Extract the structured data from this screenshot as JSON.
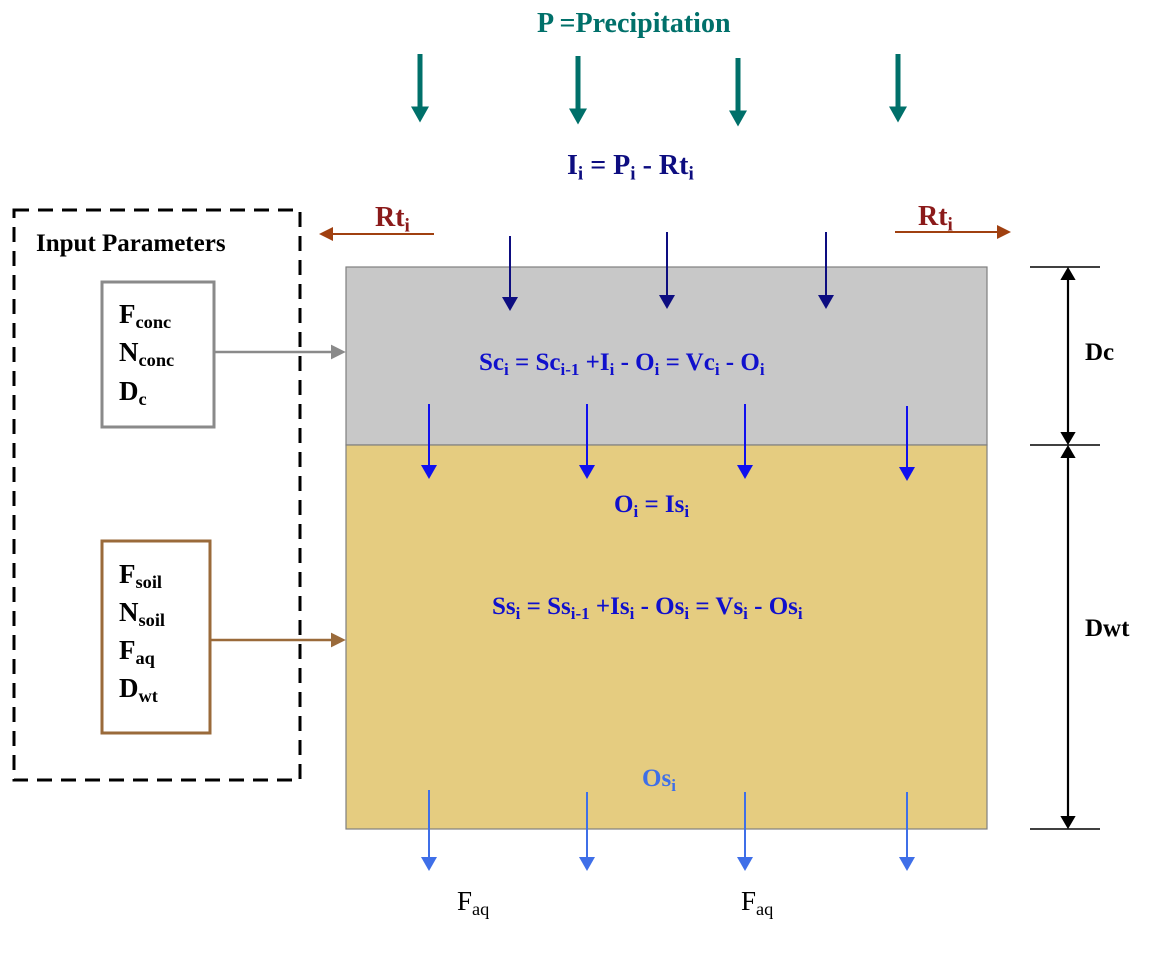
{
  "title": "P =Precipitation",
  "infiltration": {
    "I": "I",
    "i1": "i",
    "eq": " = P",
    "i2": "i",
    "minus": " - Rt",
    "i3": "i"
  },
  "runoff_left": {
    "base": "Rt",
    "sub": "i"
  },
  "runoff_right": {
    "base": "Rt",
    "sub": "i"
  },
  "input_panel": {
    "title": "Input Parameters",
    "concrete_params": [
      {
        "base": "F",
        "sub": "conc"
      },
      {
        "base": "N",
        "sub": "conc"
      },
      {
        "base": "D",
        "sub": "c"
      }
    ],
    "soil_params": [
      {
        "base": "F",
        "sub": "soil"
      },
      {
        "base": "N",
        "sub": "soil"
      },
      {
        "base": "F",
        "sub": "aq"
      },
      {
        "base": "D",
        "sub": "wt"
      }
    ]
  },
  "concrete_equation": {
    "t1": "Sc",
    "s1": "i",
    "t2": " = Sc",
    "s2": "i-1",
    "t3": " +I",
    "s3": "i",
    "t4": " - O",
    "s4": "i",
    "t5": " = Vc",
    "s5": "i",
    "t6": " - O",
    "s6": "i"
  },
  "outflow_equation": {
    "t1": "O",
    "s1": "i",
    "t2": " = Is",
    "s2": "i"
  },
  "soil_equation": {
    "t1": "Ss",
    "s1": "i",
    "t2": " = Ss",
    "s2": "i-1",
    "t3": " +Is",
    "s3": "i",
    "t4": " - Os",
    "s4": "i",
    "t5": " = Vs",
    "s5": "i",
    "t6": " - Os",
    "s6": "i"
  },
  "soil_outflow": {
    "base": "Os",
    "sub": "i"
  },
  "depth_labels": {
    "concrete": "Dc",
    "water_table": "Dwt"
  },
  "aquifer_labels": [
    {
      "base": "F",
      "sub": "aq"
    },
    {
      "base": "F",
      "sub": "aq"
    }
  ],
  "colors": {
    "precipitation": "#00706a",
    "infiltration": "#0d0d80",
    "runoff": "#8b2a00",
    "equation_blue": "#1010cc",
    "outflow_light": "#3f6fe8",
    "concrete_fill": "#c8c8c8",
    "soil_fill": "#e5cc80",
    "concrete_box": "#8a8a8a",
    "soil_box": "#9a6a3a"
  }
}
